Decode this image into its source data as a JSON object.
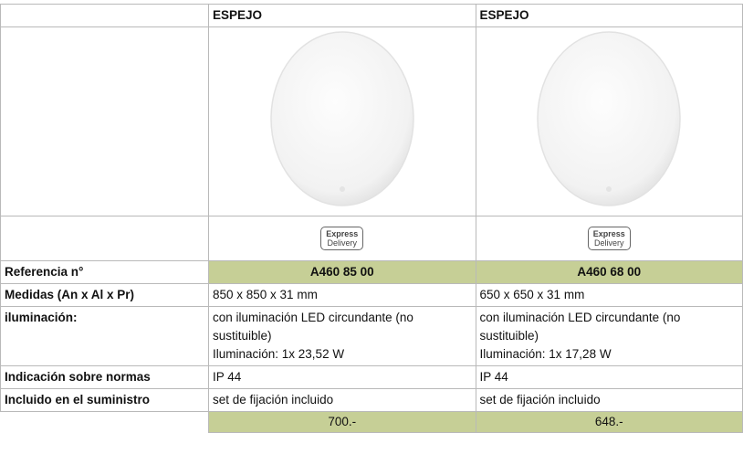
{
  "table": {
    "columns": [
      "ESPEJO",
      "ESPEJO"
    ],
    "badges": [
      [
        "Express",
        "Delivery"
      ],
      [
        "Express",
        "Delivery"
      ]
    ],
    "rows": [
      {
        "label": "Referencia n°",
        "values": [
          "A460 85 00",
          "A460 68 00"
        ]
      },
      {
        "label": "Medidas (An x Al x Pr)",
        "values": [
          "850 x 850 x 31 mm",
          "650 x 650 x 31 mm"
        ]
      },
      {
        "label": "iluminación:",
        "values": [
          [
            "con iluminación LED circundante (no sustituible)",
            "Iluminación: 1x 23,52 W"
          ],
          [
            "con iluminación LED circundante (no sustituible)",
            "Iluminación: 1x 17,28 W"
          ]
        ]
      },
      {
        "label": "Indicación sobre normas",
        "values": [
          "IP 44",
          "IP 44"
        ]
      },
      {
        "label": "Incluido en el suministro",
        "values": [
          "set de fijación incluido",
          "set de fijación incluido"
        ]
      }
    ],
    "prices": [
      "700.-",
      "648.-"
    ]
  }
}
